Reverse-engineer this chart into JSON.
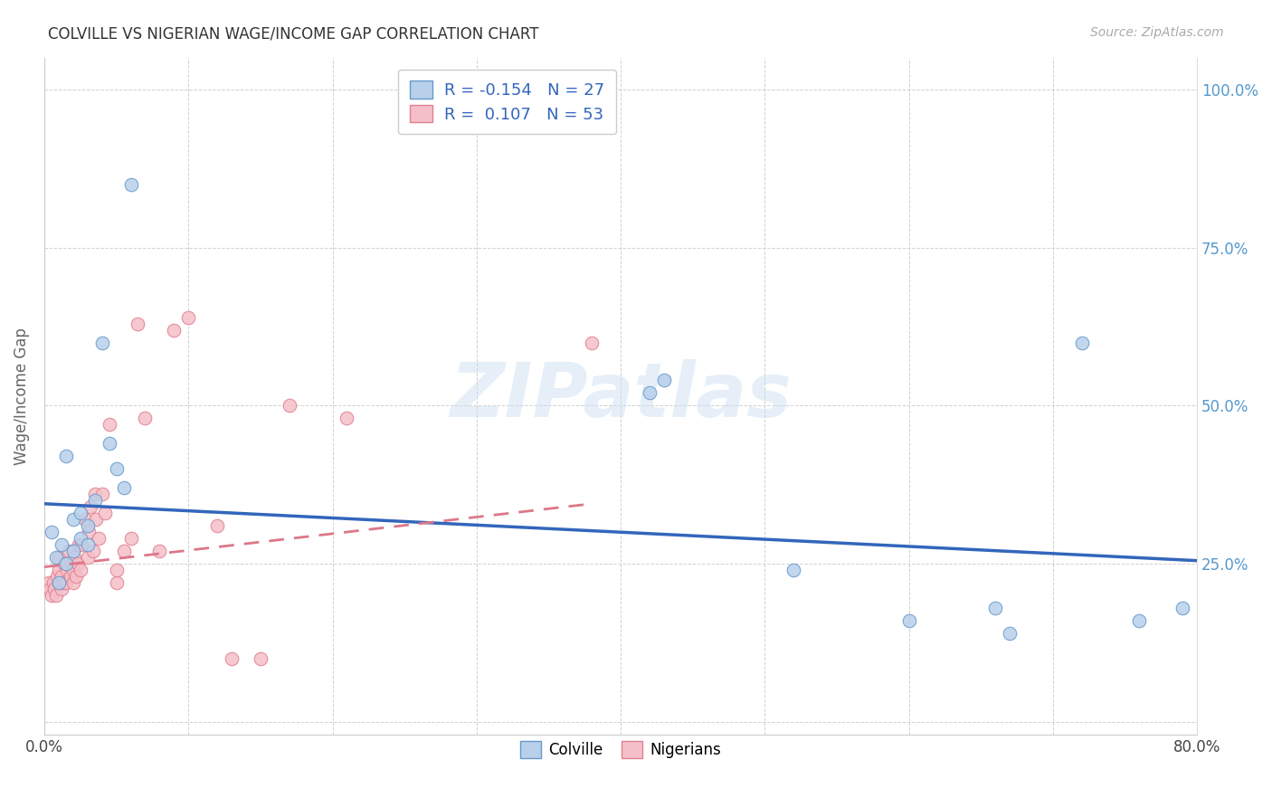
{
  "title": "COLVILLE VS NIGERIAN WAGE/INCOME GAP CORRELATION CHART",
  "source": "Source: ZipAtlas.com",
  "ylabel": "Wage/Income Gap",
  "xlim": [
    0.0,
    0.8
  ],
  "ylim": [
    -0.02,
    1.05
  ],
  "yticks": [
    0.0,
    0.25,
    0.5,
    0.75,
    1.0
  ],
  "ytick_labels": [
    "",
    "25.0%",
    "50.0%",
    "75.0%",
    "100.0%"
  ],
  "xticks": [
    0.0,
    0.1,
    0.2,
    0.3,
    0.4,
    0.5,
    0.6,
    0.7,
    0.8
  ],
  "xtick_labels": [
    "0.0%",
    "",
    "",
    "",
    "",
    "",
    "",
    "",
    "80.0%"
  ],
  "colville_color": "#b8d0ea",
  "nigerian_color": "#f5bfc8",
  "colville_edge_color": "#6699cc",
  "nigerian_edge_color": "#e08090",
  "colville_line_color": "#3366bb",
  "nigerian_line_color": "#dd7788",
  "legend_colville_r": "-0.154",
  "legend_colville_n": "27",
  "legend_nigerian_r": "0.107",
  "legend_nigerian_n": "53",
  "watermark": "ZIPatlas",
  "colville_x": [
    0.005,
    0.008,
    0.01,
    0.012,
    0.015,
    0.015,
    0.02,
    0.02,
    0.025,
    0.025,
    0.03,
    0.03,
    0.035,
    0.04,
    0.045,
    0.05,
    0.055,
    0.06,
    0.42,
    0.43,
    0.52,
    0.6,
    0.66,
    0.67,
    0.72,
    0.76,
    0.79
  ],
  "colville_y": [
    0.3,
    0.26,
    0.22,
    0.28,
    0.25,
    0.42,
    0.27,
    0.32,
    0.29,
    0.33,
    0.28,
    0.31,
    0.35,
    0.6,
    0.44,
    0.4,
    0.37,
    0.85,
    0.52,
    0.54,
    0.24,
    0.16,
    0.18,
    0.14,
    0.6,
    0.16,
    0.18
  ],
  "nigerian_x": [
    0.003,
    0.004,
    0.005,
    0.006,
    0.007,
    0.008,
    0.009,
    0.01,
    0.01,
    0.01,
    0.012,
    0.012,
    0.013,
    0.014,
    0.015,
    0.016,
    0.017,
    0.018,
    0.019,
    0.02,
    0.02,
    0.021,
    0.022,
    0.023,
    0.024,
    0.025,
    0.026,
    0.028,
    0.03,
    0.031,
    0.032,
    0.034,
    0.035,
    0.036,
    0.038,
    0.04,
    0.042,
    0.045,
    0.05,
    0.05,
    0.055,
    0.06,
    0.065,
    0.07,
    0.08,
    0.09,
    0.1,
    0.12,
    0.13,
    0.15,
    0.17,
    0.21,
    0.38
  ],
  "nigerian_y": [
    0.22,
    0.21,
    0.2,
    0.22,
    0.21,
    0.2,
    0.23,
    0.22,
    0.24,
    0.26,
    0.21,
    0.23,
    0.22,
    0.25,
    0.22,
    0.24,
    0.27,
    0.23,
    0.25,
    0.22,
    0.24,
    0.26,
    0.23,
    0.25,
    0.28,
    0.24,
    0.28,
    0.32,
    0.26,
    0.3,
    0.34,
    0.27,
    0.36,
    0.32,
    0.29,
    0.36,
    0.33,
    0.47,
    0.22,
    0.24,
    0.27,
    0.29,
    0.63,
    0.48,
    0.27,
    0.62,
    0.64,
    0.31,
    0.1,
    0.1,
    0.5,
    0.48,
    0.6
  ],
  "blue_line_x0": 0.0,
  "blue_line_y0": 0.345,
  "blue_line_x1": 0.8,
  "blue_line_y1": 0.255,
  "pink_line_x0": 0.0,
  "pink_line_y0": 0.245,
  "pink_line_x1": 0.38,
  "pink_line_y1": 0.345
}
